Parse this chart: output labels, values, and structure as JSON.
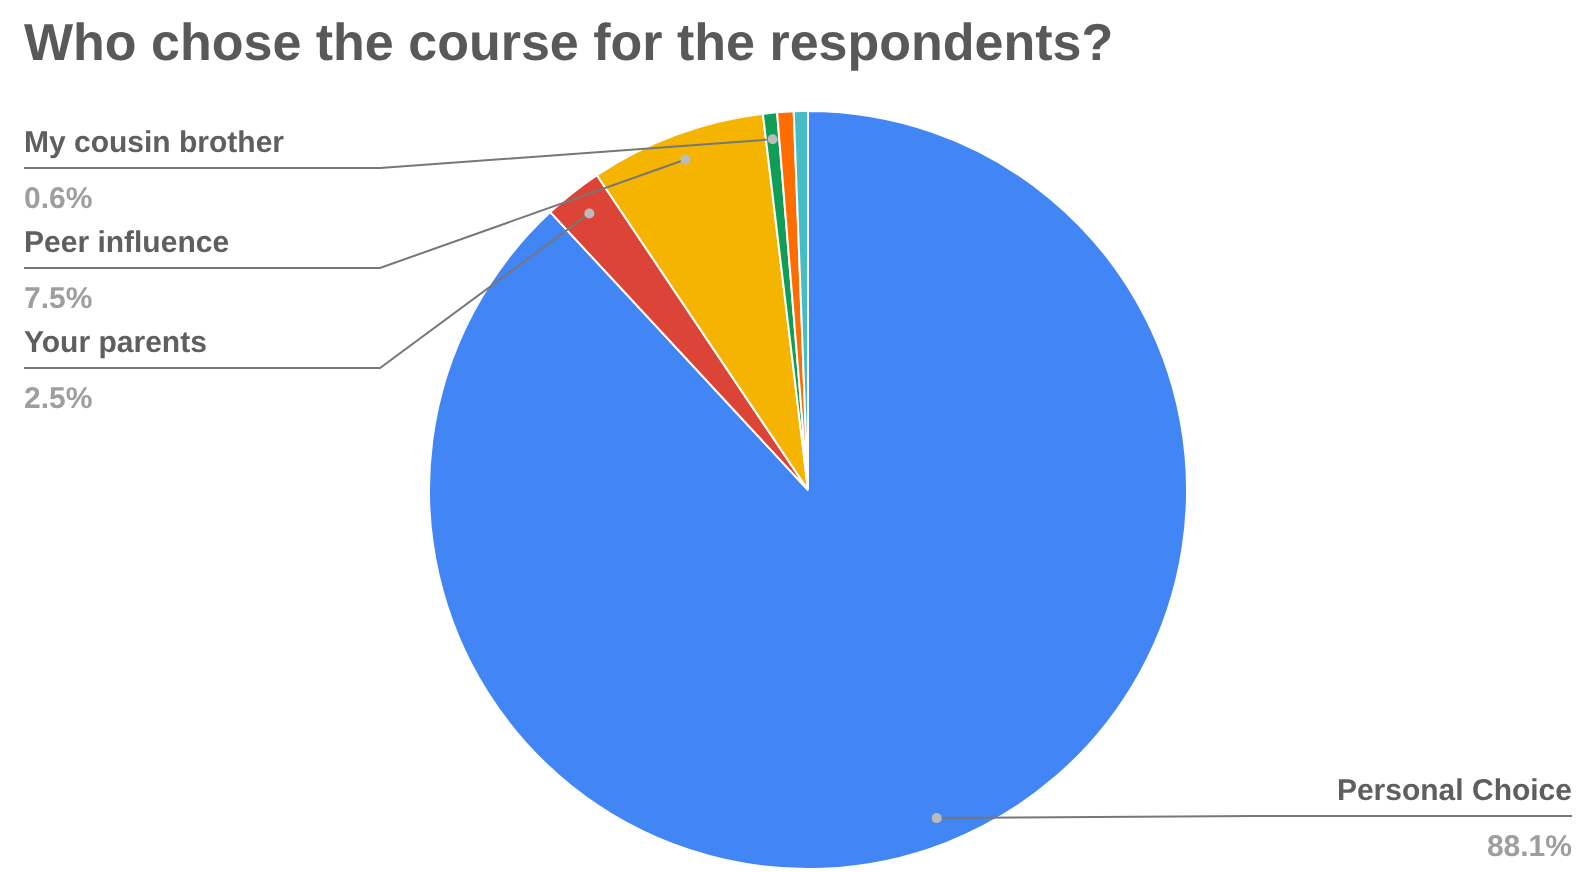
{
  "chart_data": {
    "type": "pie",
    "title": "Who chose the course for the respondents?",
    "categories": [
      "Personal Choice",
      "Your parents",
      "Peer influence",
      "My cousin brother",
      null,
      null
    ],
    "values": [
      88.1,
      2.5,
      7.5,
      0.6,
      0.7,
      0.6
    ],
    "colors": [
      "#4285f4",
      "#db4437",
      "#f4b400",
      "#0f9d58",
      "#ff6d01",
      "#46bdc6"
    ],
    "value_labels": [
      "88.1%",
      "2.5%",
      "7.5%",
      "0.6%",
      null,
      null
    ],
    "legend": false
  }
}
